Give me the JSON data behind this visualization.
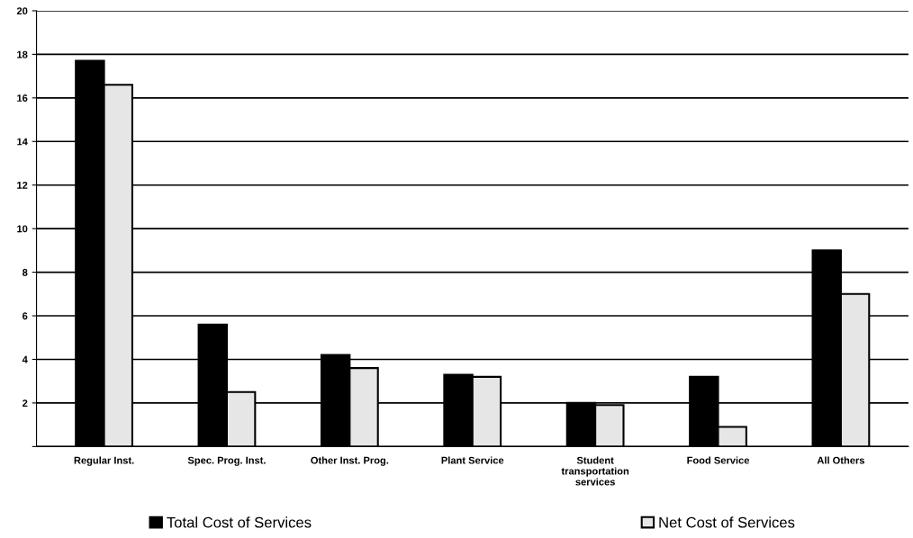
{
  "chart_data": {
    "type": "bar",
    "categories": [
      "Regular Inst.",
      "Spec. Prog. Inst.",
      "Other Inst. Prog.",
      "Plant Service",
      "Student\ntransportation\nservices",
      "Food Service",
      "All Others"
    ],
    "series": [
      {
        "name": "Total Cost of Services",
        "color": "#000000",
        "values": [
          17.7,
          5.6,
          4.2,
          3.3,
          2.0,
          3.2,
          9.0
        ]
      },
      {
        "name": "Net Cost of Services",
        "color": "#e6e6e6",
        "values": [
          16.6,
          2.5,
          3.6,
          3.2,
          1.9,
          0.9,
          7.0
        ]
      }
    ],
    "ylim": [
      0,
      20
    ],
    "yticks": [
      {
        "value": 0,
        "label": null
      },
      2,
      4,
      6,
      8,
      10,
      12,
      14,
      16,
      18,
      20
    ],
    "grid": "y",
    "legend": "bottom"
  }
}
